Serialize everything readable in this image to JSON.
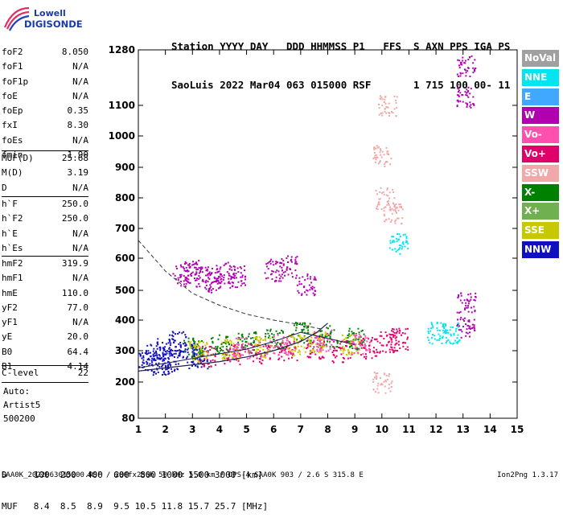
{
  "logo": {
    "line1": "Lowell",
    "line2": "DIGISONDE"
  },
  "header": {
    "labels_line": "Station YYYY DAY   DDD HHMMSS P1   FFS  S AXN PPS IGA PS",
    "values_line": "SaoLuis 2022 Mar04 063 015000 RSF       1 715 100 00- 11"
  },
  "params_group1": [
    {
      "name": "foF2",
      "value": "8.050"
    },
    {
      "name": "foF1",
      "value": "N/A"
    },
    {
      "name": "foF1p",
      "value": "N/A"
    },
    {
      "name": "foE",
      "value": "N/A"
    },
    {
      "name": "foEp",
      "value": "0.35"
    },
    {
      "name": "fxI",
      "value": "8.30"
    },
    {
      "name": "foEs",
      "value": "N/A"
    },
    {
      "name": "fmin",
      "value": "1.90"
    }
  ],
  "params_group2": [
    {
      "name": "MUF(D)",
      "value": "25.68"
    },
    {
      "name": "M(D)",
      "value": "3.19"
    },
    {
      "name": "D",
      "value": "N/A"
    }
  ],
  "params_group3": [
    {
      "name": "h`F",
      "value": "250.0"
    },
    {
      "name": "h`F2",
      "value": "250.0"
    },
    {
      "name": "h`E",
      "value": "N/A"
    },
    {
      "name": "h`Es",
      "value": "N/A"
    }
  ],
  "params_group4": [
    {
      "name": "hmF2",
      "value": "319.9"
    },
    {
      "name": "hmF1",
      "value": "N/A"
    },
    {
      "name": "hmE",
      "value": "110.0"
    },
    {
      "name": "yF2",
      "value": "77.0"
    },
    {
      "name": "yF1",
      "value": "N/A"
    },
    {
      "name": "yE",
      "value": "20.0"
    },
    {
      "name": "B0",
      "value": "64.4"
    },
    {
      "name": "B1",
      "value": "4.14"
    }
  ],
  "c_level": {
    "name": "C-level",
    "value": "22"
  },
  "autoscale": {
    "line1": "Auto:",
    "line2": "Artist5",
    "line3": "500200"
  },
  "legend": [
    {
      "label": "NoVal",
      "color": "#a0a0a0"
    },
    {
      "label": "NNE",
      "color": "#00e5f0"
    },
    {
      "label": "E",
      "color": "#40a8ff"
    },
    {
      "label": "W",
      "color": "#b000b0"
    },
    {
      "label": "Vo-",
      "color": "#ff50b0"
    },
    {
      "label": "Vo+",
      "color": "#e0006a"
    },
    {
      "label": "SSW",
      "color": "#f0a8a8"
    },
    {
      "label": "X-",
      "color": "#008000"
    },
    {
      "label": "X+",
      "color": "#70b050"
    },
    {
      "label": "SSE",
      "color": "#c8c800"
    },
    {
      "label": "NNW",
      "color": "#1010c0"
    }
  ],
  "footer": {
    "d_line": "D     100  200  400  600  800 1000 1500 3000 [km]",
    "muf_line": "MUF   8.4  8.5  8.9  9.5 10.5 11.8 15.7 25.7 [MHz]"
  },
  "bottombar": {
    "left": "SAA0K_2022063015000.RSF / 280fx256h 50 kHz 5.0 km / DPS-4 SAA0K 903 / 2.6 S 315.8 E",
    "right": "Ion2Png 1.3.17"
  },
  "chart_data": {
    "type": "scatter",
    "title": "",
    "xlabel": "",
    "ylabel": "",
    "x_ticks": [
      "1",
      "2",
      "3",
      "4",
      "5",
      "6",
      "7",
      "8",
      "9",
      "10",
      "11",
      "12",
      "13",
      "14",
      "15"
    ],
    "y_ticks": [
      "80",
      "200",
      "300",
      "400",
      "500",
      "600",
      "700",
      "800",
      "900",
      "1000",
      "1100",
      "1280"
    ],
    "xlim": [
      1,
      15
    ],
    "ylim": [
      80,
      1280
    ],
    "grid": false,
    "legend_position": "right",
    "series": [
      {
        "name": "W",
        "color": "#b000b0",
        "points": [
          [
            2.6,
            550
          ],
          [
            3.0,
            560
          ],
          [
            3.4,
            540
          ],
          [
            3.8,
            530
          ],
          [
            4.2,
            555
          ],
          [
            4.6,
            545
          ],
          [
            6.0,
            565
          ],
          [
            6.5,
            575
          ],
          [
            7.2,
            520
          ],
          [
            13.1,
            1130
          ],
          [
            13.1,
            1230
          ],
          [
            13.1,
            460
          ],
          [
            13.1,
            380
          ]
        ]
      },
      {
        "name": "NNW",
        "color": "#1010c0",
        "points": [
          [
            1.2,
            270
          ],
          [
            1.6,
            290
          ],
          [
            2.0,
            310
          ],
          [
            2.4,
            330
          ],
          [
            2.8,
            300
          ],
          [
            3.2,
            280
          ],
          [
            1.8,
            260
          ],
          [
            2.2,
            270
          ]
        ]
      },
      {
        "name": "Vo+",
        "color": "#e0006a",
        "points": [
          [
            3.5,
            285
          ],
          [
            4.5,
            290
          ],
          [
            5.5,
            295
          ],
          [
            6.5,
            300
          ],
          [
            7.5,
            310
          ],
          [
            8.5,
            300
          ],
          [
            9.5,
            310
          ],
          [
            10.2,
            330
          ],
          [
            10.6,
            340
          ]
        ]
      },
      {
        "name": "X-",
        "color": "#008000",
        "points": [
          [
            3.0,
            310
          ],
          [
            4.0,
            320
          ],
          [
            5.0,
            330
          ],
          [
            6.0,
            340
          ],
          [
            7.0,
            360
          ],
          [
            8.0,
            350
          ],
          [
            9.0,
            340
          ]
        ]
      },
      {
        "name": "SSE",
        "color": "#c8c800",
        "points": [
          [
            3.2,
            300
          ],
          [
            4.4,
            305
          ],
          [
            5.6,
            315
          ],
          [
            6.8,
            320
          ],
          [
            7.6,
            330
          ],
          [
            8.8,
            320
          ]
        ]
      },
      {
        "name": "NNE",
        "color": "#00e5f0",
        "points": [
          [
            12.0,
            360
          ],
          [
            12.5,
            358
          ],
          [
            10.6,
            650
          ]
        ]
      },
      {
        "name": "SSW",
        "color": "#f0a8a8",
        "points": [
          [
            10.2,
            1100
          ],
          [
            10.0,
            940
          ],
          [
            10.1,
            800
          ],
          [
            10.4,
            750
          ],
          [
            10.0,
            200
          ]
        ]
      },
      {
        "name": "Vo-",
        "color": "#ff50b0",
        "points": [
          [
            4.8,
            310
          ],
          [
            6.2,
            320
          ],
          [
            7.8,
            335
          ],
          [
            9.2,
            325
          ]
        ]
      }
    ]
  }
}
